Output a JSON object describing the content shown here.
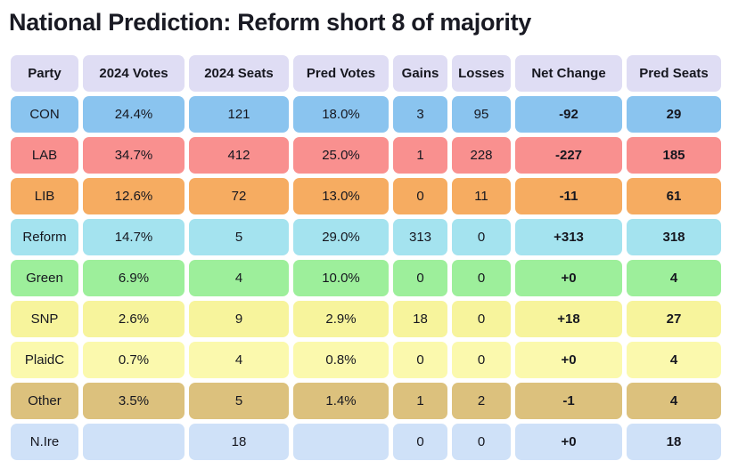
{
  "title": "National Prediction: Reform short 8 of majority",
  "colors": {
    "header_bg": "#dfddf4",
    "text": "#16171f",
    "title_text": "#191a23",
    "page_bg": "#ffffff"
  },
  "chart_data": {
    "type": "table",
    "title": "National Prediction: Reform short 8 of majority",
    "columns": [
      {
        "key": "party",
        "label": "Party",
        "bold": false
      },
      {
        "key": "votes2024",
        "label": "2024 Votes",
        "bold": false
      },
      {
        "key": "seats2024",
        "label": "2024 Seats",
        "bold": false
      },
      {
        "key": "predVotes",
        "label": "Pred Votes",
        "bold": false
      },
      {
        "key": "gains",
        "label": "Gains",
        "bold": false
      },
      {
        "key": "losses",
        "label": "Losses",
        "bold": false
      },
      {
        "key": "netChange",
        "label": "Net Change",
        "bold": true
      },
      {
        "key": "predSeats",
        "label": "Pred Seats",
        "bold": true
      }
    ],
    "rows": [
      {
        "party": "CON",
        "votes2024": "24.4%",
        "seats2024": "121",
        "predVotes": "18.0%",
        "gains": "3",
        "losses": "95",
        "netChange": "-92",
        "predSeats": "29",
        "color": "#8ac4ef"
      },
      {
        "party": "LAB",
        "votes2024": "34.7%",
        "seats2024": "412",
        "predVotes": "25.0%",
        "gains": "1",
        "losses": "228",
        "netChange": "-227",
        "predSeats": "185",
        "color": "#f9908f"
      },
      {
        "party": "LIB",
        "votes2024": "12.6%",
        "seats2024": "72",
        "predVotes": "13.0%",
        "gains": "0",
        "losses": "11",
        "netChange": "-11",
        "predSeats": "61",
        "color": "#f6ac61"
      },
      {
        "party": "Reform",
        "votes2024": "14.7%",
        "seats2024": "5",
        "predVotes": "29.0%",
        "gains": "313",
        "losses": "0",
        "netChange": "+313",
        "predSeats": "318",
        "color": "#a4e3ef"
      },
      {
        "party": "Green",
        "votes2024": "6.9%",
        "seats2024": "4",
        "predVotes": "10.0%",
        "gains": "0",
        "losses": "0",
        "netChange": "+0",
        "predSeats": "4",
        "color": "#9def9b"
      },
      {
        "party": "SNP",
        "votes2024": "2.6%",
        "seats2024": "9",
        "predVotes": "2.9%",
        "gains": "18",
        "losses": "0",
        "netChange": "+18",
        "predSeats": "27",
        "color": "#f7f49c"
      },
      {
        "party": "PlaidC",
        "votes2024": "0.7%",
        "seats2024": "4",
        "predVotes": "0.8%",
        "gains": "0",
        "losses": "0",
        "netChange": "+0",
        "predSeats": "4",
        "color": "#fbf9ad"
      },
      {
        "party": "Other",
        "votes2024": "3.5%",
        "seats2024": "5",
        "predVotes": "1.4%",
        "gains": "1",
        "losses": "2",
        "netChange": "-1",
        "predSeats": "4",
        "color": "#dcc17d"
      },
      {
        "party": "N.Ire",
        "votes2024": "",
        "seats2024": "18",
        "predVotes": "",
        "gains": "0",
        "losses": "0",
        "netChange": "+0",
        "predSeats": "18",
        "color": "#cfe1f8"
      }
    ]
  }
}
